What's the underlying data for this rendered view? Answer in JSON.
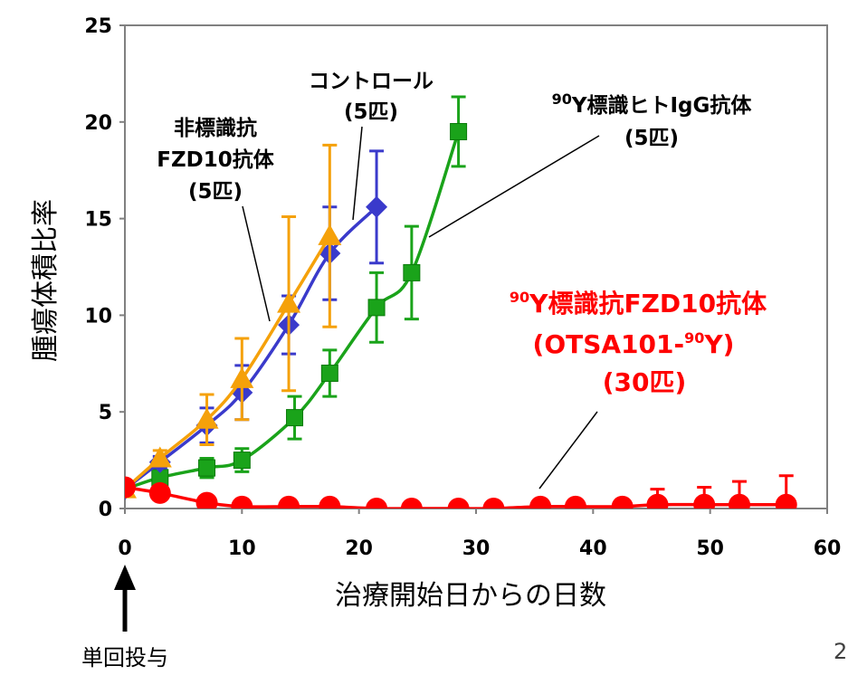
{
  "chart_data": {
    "type": "line",
    "ylabel": "腫瘍体積比率",
    "xlabel": "治療開始日からの日数",
    "xlim": [
      0,
      60
    ],
    "ylim": [
      0,
      25
    ],
    "xticks": [
      0,
      10,
      20,
      30,
      40,
      50,
      60
    ],
    "yticks": [
      0,
      5,
      10,
      15,
      20,
      25
    ],
    "grid": false,
    "series": [
      {
        "name": "コントロール",
        "count": "(5匹)",
        "color": "#3a3acb",
        "marker": "diamond",
        "x": [
          0,
          3,
          7,
          10,
          14,
          17.5,
          21.5
        ],
        "y": [
          1,
          2.4,
          4.3,
          6.0,
          9.5,
          13.2,
          15.6
        ],
        "err": [
          0,
          0.3,
          0.9,
          1.4,
          1.5,
          2.4,
          2.9
        ]
      },
      {
        "name": "非標識抗 FZD10抗体",
        "count": "(5匹)",
        "color": "#f5a10a",
        "marker": "triangle",
        "x": [
          0,
          3,
          7,
          10,
          14,
          17.5
        ],
        "y": [
          1,
          2.6,
          4.6,
          6.7,
          10.6,
          14.1
        ],
        "err": [
          0,
          0.4,
          1.3,
          2.1,
          4.5,
          4.7
        ]
      },
      {
        "name": "90Y標識ヒトIgG抗体",
        "count": "(5匹)",
        "color": "#1aa31a",
        "marker": "square",
        "x": [
          0,
          3,
          7,
          10,
          14.5,
          17.5,
          21.5,
          24.5,
          28.5
        ],
        "y": [
          1,
          1.6,
          2.1,
          2.5,
          4.7,
          7.0,
          10.4,
          12.2,
          19.5
        ],
        "err": [
          0,
          0.3,
          0.5,
          0.6,
          1.1,
          1.2,
          1.8,
          2.4,
          1.8
        ]
      },
      {
        "name": "90Y標識抗FZD10抗体",
        "count": "(30匹)",
        "color": "#ff0000",
        "marker": "circle",
        "x": [
          0,
          3,
          7,
          10,
          14,
          17.5,
          21.5,
          24.5,
          28.5,
          31.5,
          35.5,
          38.5,
          42.5,
          45.5,
          49.5,
          52.5,
          56.5
        ],
        "y": [
          1.1,
          0.8,
          0.3,
          0.1,
          0.1,
          0.1,
          0,
          0,
          0,
          0,
          0.1,
          0.1,
          0.1,
          0.2,
          0.2,
          0.2,
          0.2
        ],
        "err": [
          0,
          0,
          0,
          0,
          0,
          0,
          0,
          0,
          0,
          0,
          0,
          0,
          0,
          0.8,
          0.9,
          1.2,
          1.5
        ]
      }
    ],
    "annotations": {
      "control": [
        "コントロール",
        "(5匹)"
      ],
      "unlabeled": [
        "非標識抗",
        "FZD10抗体",
        "(5匹)"
      ],
      "igg": {
        "sup": "90",
        "line1": "Y標識ヒトIgG抗体",
        "line2": "(5匹)"
      },
      "otsa": {
        "sup1": "90",
        "line1": "Y標識抗FZD10抗体",
        "line2a": "(OTSA101-",
        "sup2": "90",
        "line2b": "Y)",
        "line3": "(30匹)"
      }
    },
    "dosing_label": "単回投与",
    "page_number": "2"
  }
}
